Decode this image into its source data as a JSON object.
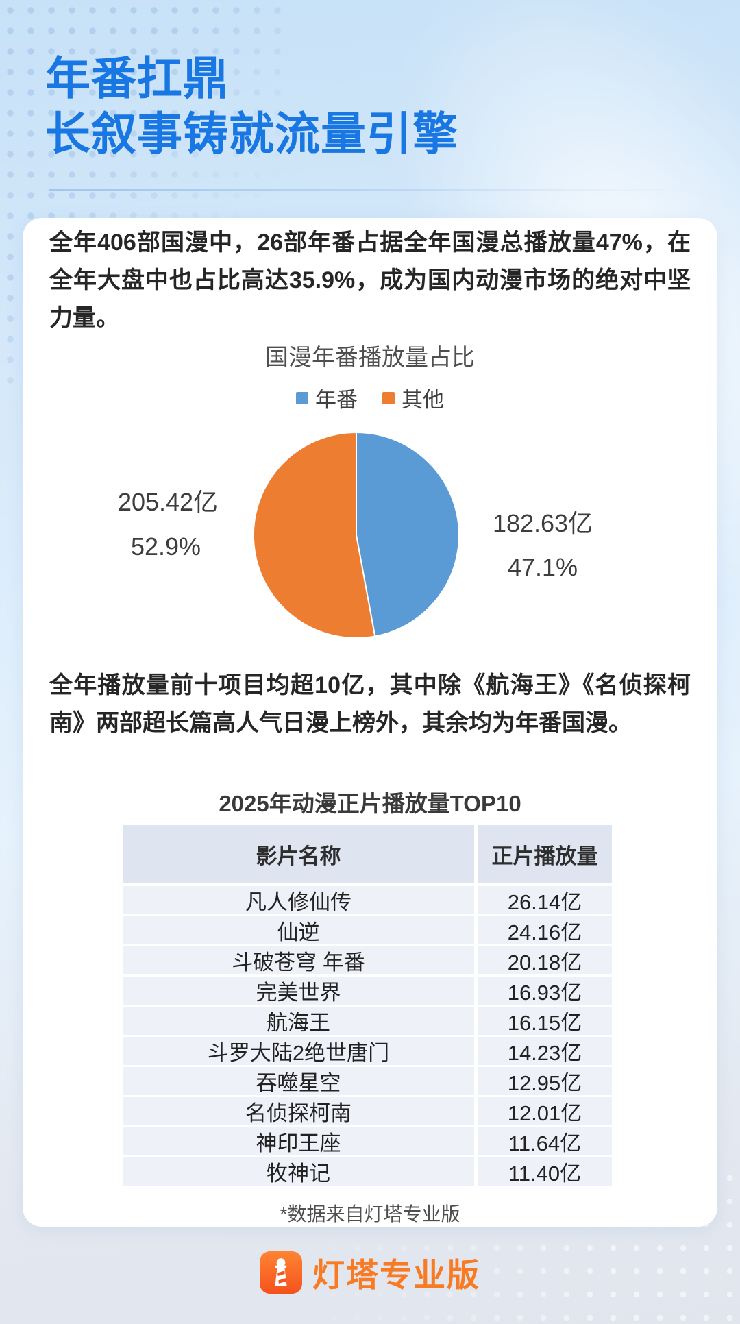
{
  "header": {
    "title_line1": "年番扛鼎",
    "title_line2": "长叙事铸就流量引擎"
  },
  "intro": {
    "text": "全年406部国漫中，26部年番占据全年国漫总播放量47%，在全年大盘中也占比高达35.9%，成为国内动漫市场的绝对中坚力量。"
  },
  "top10_intro": {
    "text": "全年播放量前十项目均超10亿，其中除《航海王》《名侦探柯南》两部超长篇高人气日漫上榜外，其余均为年番国漫。"
  },
  "chart_data": [
    {
      "type": "pie",
      "title": "国漫年番播放量占比",
      "legend_position": "top",
      "colors": [
        "#5b9bd5",
        "#ed7d31"
      ],
      "start_angle_deg": 0,
      "slices": [
        {
          "name": "年番",
          "value": 182.63,
          "pct": 47.1,
          "value_label": "182.63亿",
          "pct_label": "47.1%"
        },
        {
          "name": "其他",
          "value": 205.42,
          "pct": 52.9,
          "value_label": "205.42亿",
          "pct_label": "52.9%"
        }
      ]
    },
    {
      "type": "table",
      "title": "2025年动漫正片播放量TOP10",
      "columns": [
        "影片名称",
        "正片播放量"
      ],
      "rows": [
        {
          "name": "凡人修仙传",
          "value": "26.14亿"
        },
        {
          "name": "仙逆",
          "value": "24.16亿"
        },
        {
          "name": "斗破苍穹 年番",
          "value": "20.18亿"
        },
        {
          "name": "完美世界",
          "value": "16.93亿"
        },
        {
          "name": "航海王",
          "value": "16.15亿"
        },
        {
          "name": "斗罗大陆2绝世唐门",
          "value": "14.23亿"
        },
        {
          "name": "吞噬星空",
          "value": "12.95亿"
        },
        {
          "name": "名侦探柯南",
          "value": "12.01亿"
        },
        {
          "name": "神印王座",
          "value": "11.64亿"
        },
        {
          "name": "牧神记",
          "value": "11.40亿"
        }
      ],
      "footnote": "*数据来自灯塔专业版"
    }
  ],
  "footer": {
    "brand": "灯塔专业版",
    "logo_icon": "lighthouse-icon"
  },
  "colors": {
    "title_blue": "#1877e2",
    "pie_blue": "#5b9bd5",
    "pie_orange": "#ed7d31",
    "brand_orange": "#f87a22",
    "table_header_bg": "#dee5f0",
    "table_row_bg": "#eef1f8"
  }
}
